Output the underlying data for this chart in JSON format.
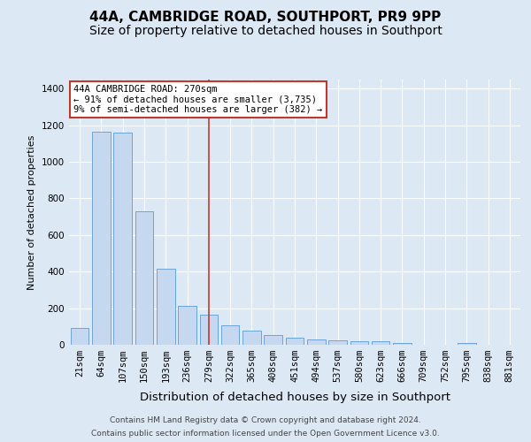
{
  "title": "44A, CAMBRIDGE ROAD, SOUTHPORT, PR9 9PP",
  "subtitle": "Size of property relative to detached houses in Southport",
  "xlabel": "Distribution of detached houses by size in Southport",
  "ylabel": "Number of detached properties",
  "footer_line1": "Contains HM Land Registry data © Crown copyright and database right 2024.",
  "footer_line2": "Contains public sector information licensed under the Open Government Licence v3.0.",
  "categories": [
    "21sqm",
    "64sqm",
    "107sqm",
    "150sqm",
    "193sqm",
    "236sqm",
    "279sqm",
    "322sqm",
    "365sqm",
    "408sqm",
    "451sqm",
    "494sqm",
    "537sqm",
    "580sqm",
    "623sqm",
    "666sqm",
    "709sqm",
    "752sqm",
    "795sqm",
    "838sqm",
    "881sqm"
  ],
  "values": [
    90,
    1165,
    1160,
    730,
    415,
    215,
    165,
    105,
    75,
    55,
    40,
    30,
    25,
    20,
    18,
    10,
    0,
    0,
    8,
    0,
    0
  ],
  "bar_color": "#c5d8f0",
  "bar_edge_color": "#5b9bd5",
  "vline_x_index": 6,
  "vline_color": "#c0392b",
  "annotation_text": "44A CAMBRIDGE ROAD: 270sqm\n← 91% of detached houses are smaller (3,735)\n9% of semi-detached houses are larger (382) →",
  "annotation_box_color": "#c0392b",
  "ylim": [
    0,
    1450
  ],
  "yticks": [
    0,
    200,
    400,
    600,
    800,
    1000,
    1200,
    1400
  ],
  "bg_color": "#dde8f5",
  "fig_bg_color": "#dde8f5",
  "grid_color": "#ffffff",
  "title_fontsize": 11,
  "subtitle_fontsize": 10,
  "ylabel_fontsize": 8,
  "xlabel_fontsize": 9.5,
  "tick_fontsize": 7.5,
  "footer_fontsize": 6.5
}
